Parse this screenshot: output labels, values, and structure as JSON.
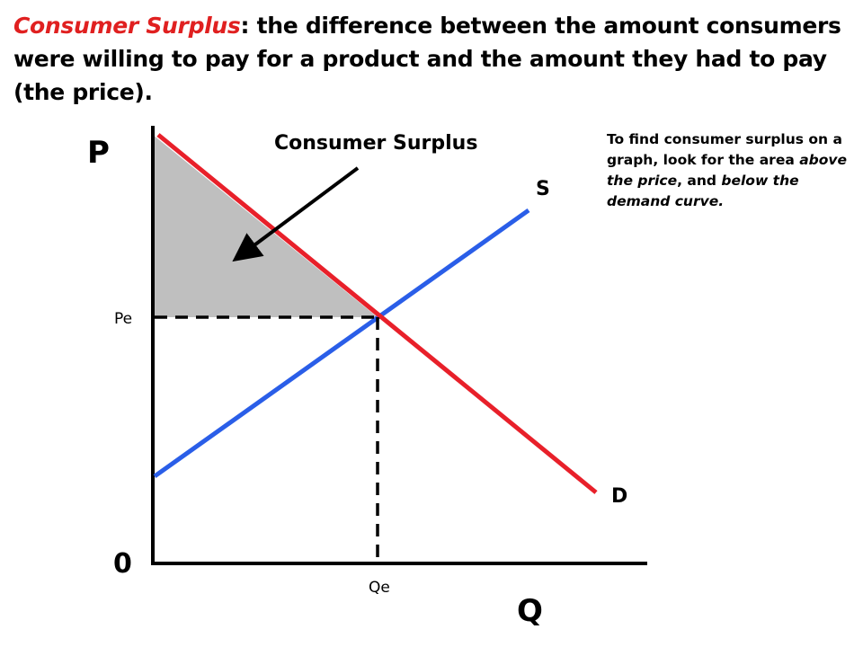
{
  "title": {
    "term": "Consumer Surplus",
    "definition": ": the difference between the amount consumers were willing to pay for a product and the amount they had to pay (the price)."
  },
  "note": {
    "part1": "To find consumer surplus on a graph, look for the area ",
    "emph1": "above the price",
    "part2": ", and ",
    "emph2": "below the demand curve."
  },
  "diagram": {
    "y_axis_label": "P",
    "x_axis_label": "Q",
    "origin_label": "0",
    "supply_label": "S",
    "demand_label": "D",
    "price_label": "Pe",
    "quantity_label": "Qe",
    "surplus_label": "Consumer Surplus"
  },
  "colors": {
    "title_term": "#e02020",
    "demand_curve": "#e8202a",
    "supply_curve": "#2a5ee8",
    "surplus_fill": "#bfbfbf",
    "axis": "#000000"
  }
}
